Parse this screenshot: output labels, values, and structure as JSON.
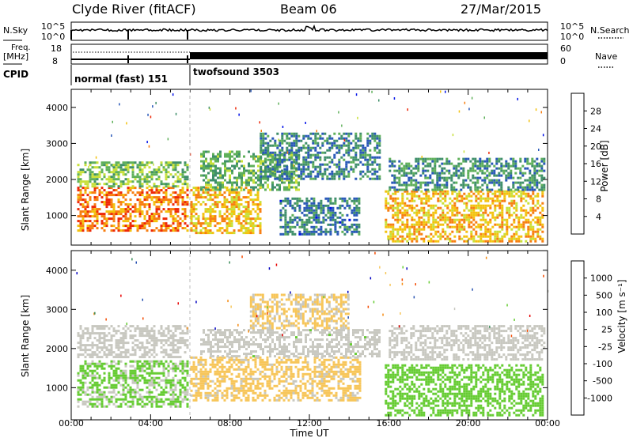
{
  "header": {
    "station": "Clyde River (fitACF)",
    "beam": "Beam 06",
    "date": "27/Mar/2015"
  },
  "noise_panel": {
    "left_label": "N.Sky",
    "left_ticks": [
      "10^5",
      "10^0"
    ],
    "right_ticks": [
      "10^5",
      "10^0"
    ],
    "right_label": "N.Search"
  },
  "freq_panel": {
    "left_label_line1": "Freq.",
    "left_label_line2": "[MHz]",
    "left_ticks": [
      "18",
      "8"
    ],
    "right_ticks": [
      "60",
      "0"
    ],
    "right_label": "Nave"
  },
  "cpid_panel": {
    "label": "CPID",
    "modes": [
      {
        "name": "normal (fast) 151",
        "start": "00:00",
        "end": "06:00"
      },
      {
        "name": "twofsound 3503",
        "start": "06:00",
        "end": "24:00"
      }
    ]
  },
  "chart_data": [
    {
      "type": "heatmap",
      "title": "",
      "quantity": "Power",
      "xlabel": "",
      "ylabel": "Slant Range [km]",
      "xlim": [
        "00:00",
        "24:00"
      ],
      "ylim": [
        180,
        4500
      ],
      "yticks": [
        1000,
        2000,
        3000,
        4000
      ],
      "colorbar": {
        "label": "Power [dB]",
        "ticks": [
          "28",
          "24",
          "20",
          "16",
          "12",
          "8",
          "4"
        ],
        "range": [
          0,
          30
        ],
        "colors": [
          "#0010e8",
          "#2858b8",
          "#3f8f6a",
          "#5fb05a",
          "#c8e03a",
          "#f3c20e",
          "#f77e10",
          "#ee2808"
        ]
      },
      "echo_regions": [
        {
          "t": [
            0.3,
            5.9
          ],
          "r": [
            600,
            1800
          ],
          "db": 26
        },
        {
          "t": [
            0.3,
            5.9
          ],
          "r": [
            1800,
            2500
          ],
          "db": 14
        },
        {
          "t": [
            6.0,
            9.5
          ],
          "r": [
            500,
            1800
          ],
          "db": 22
        },
        {
          "t": [
            6.5,
            11.5
          ],
          "r": [
            1700,
            2800
          ],
          "db": 12
        },
        {
          "t": [
            9.5,
            15.5
          ],
          "r": [
            2000,
            3300
          ],
          "db": 8
        },
        {
          "t": [
            10.5,
            14.5
          ],
          "r": [
            500,
            1500
          ],
          "db": 7
        },
        {
          "t": [
            15.8,
            23.8
          ],
          "r": [
            300,
            1700
          ],
          "db": 22
        },
        {
          "t": [
            16.0,
            23.8
          ],
          "r": [
            1700,
            2600
          ],
          "db": 9
        }
      ]
    },
    {
      "type": "heatmap",
      "title": "",
      "quantity": "Velocity",
      "xlabel": "Time UT",
      "ylabel": "Slant Range [km]",
      "xlim": [
        "00:00",
        "24:00"
      ],
      "xticks": [
        "00:00",
        "04:00",
        "08:00",
        "12:00",
        "16:00",
        "20:00",
        "00:00"
      ],
      "ylim": [
        180,
        4500
      ],
      "yticks": [
        1000,
        2000,
        3000,
        4000
      ],
      "colorbar": {
        "label": "Velocity [m s⁻¹]",
        "ticks": [
          "1000",
          "500",
          "100",
          "25",
          "-25",
          "-100",
          "-500",
          "-1000"
        ],
        "range": [
          -1200,
          1200
        ],
        "colors": [
          "#e80000",
          "#f44a00",
          "#f68a10",
          "#f7c65a",
          "#c8c8c0",
          "#66cc33",
          "#3a8a58",
          "#2550b0",
          "#0000c0"
        ]
      },
      "echo_regions": [
        {
          "t": [
            0.3,
            5.9
          ],
          "r": [
            500,
            1700
          ],
          "vel": 200
        },
        {
          "t": [
            0.3,
            5.9
          ],
          "r": [
            1800,
            2600
          ],
          "vel": 0
        },
        {
          "t": [
            6.0,
            14.5
          ],
          "r": [
            700,
            1800
          ],
          "vel": -250
        },
        {
          "t": [
            6.5,
            15.5
          ],
          "r": [
            1800,
            2500
          ],
          "vel": 5
        },
        {
          "t": [
            9.0,
            14.0
          ],
          "r": [
            2500,
            3400
          ],
          "vel": -200
        },
        {
          "t": [
            15.8,
            23.8
          ],
          "r": [
            300,
            1600
          ],
          "vel": 300
        },
        {
          "t": [
            16.0,
            23.8
          ],
          "r": [
            1700,
            2600
          ],
          "vel": 0
        }
      ]
    }
  ]
}
